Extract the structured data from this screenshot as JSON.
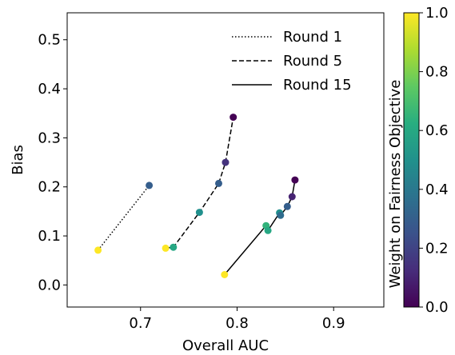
{
  "chart_data": {
    "type": "scatter",
    "title": "",
    "xlabel": "Overall AUC",
    "ylabel": "Bias",
    "xlim": [
      0.624,
      0.952
    ],
    "ylim": [
      -0.045,
      0.555
    ],
    "xticks": [
      0.7,
      0.8,
      0.9
    ],
    "yticks": [
      0.0,
      0.1,
      0.2,
      0.3,
      0.4,
      0.5
    ],
    "grid": false,
    "legend_position": "top-right",
    "colorbar": {
      "label": "Weight on Fairness Objective",
      "range": [
        0.0,
        1.0
      ],
      "ticks": [
        0.0,
        0.2,
        0.4,
        0.6,
        0.8,
        1.0
      ],
      "colormap": "viridis"
    },
    "series": [
      {
        "name": "Round 1",
        "line_style": "dotted",
        "points": [
          {
            "x": 0.656,
            "y": 0.071,
            "weight": 1.0
          },
          {
            "x": 0.709,
            "y": 0.203,
            "weight": 0.3
          }
        ]
      },
      {
        "name": "Round 5",
        "line_style": "dashed",
        "points": [
          {
            "x": 0.726,
            "y": 0.075,
            "weight": 1.0
          },
          {
            "x": 0.734,
            "y": 0.077,
            "weight": 0.6
          },
          {
            "x": 0.761,
            "y": 0.148,
            "weight": 0.5
          },
          {
            "x": 0.781,
            "y": 0.207,
            "weight": 0.3
          },
          {
            "x": 0.788,
            "y": 0.25,
            "weight": 0.15
          },
          {
            "x": 0.796,
            "y": 0.342,
            "weight": 0.0
          }
        ]
      },
      {
        "name": "Round 15",
        "line_style": "solid",
        "points": [
          {
            "x": 0.787,
            "y": 0.021,
            "weight": 1.0
          },
          {
            "x": 0.83,
            "y": 0.121,
            "weight": 0.65
          },
          {
            "x": 0.832,
            "y": 0.111,
            "weight": 0.6
          },
          {
            "x": 0.844,
            "y": 0.147,
            "weight": 0.5
          },
          {
            "x": 0.845,
            "y": 0.142,
            "weight": 0.35
          },
          {
            "x": 0.852,
            "y": 0.16,
            "weight": 0.3
          },
          {
            "x": 0.857,
            "y": 0.18,
            "weight": 0.1
          },
          {
            "x": 0.86,
            "y": 0.214,
            "weight": 0.0
          }
        ]
      }
    ]
  }
}
